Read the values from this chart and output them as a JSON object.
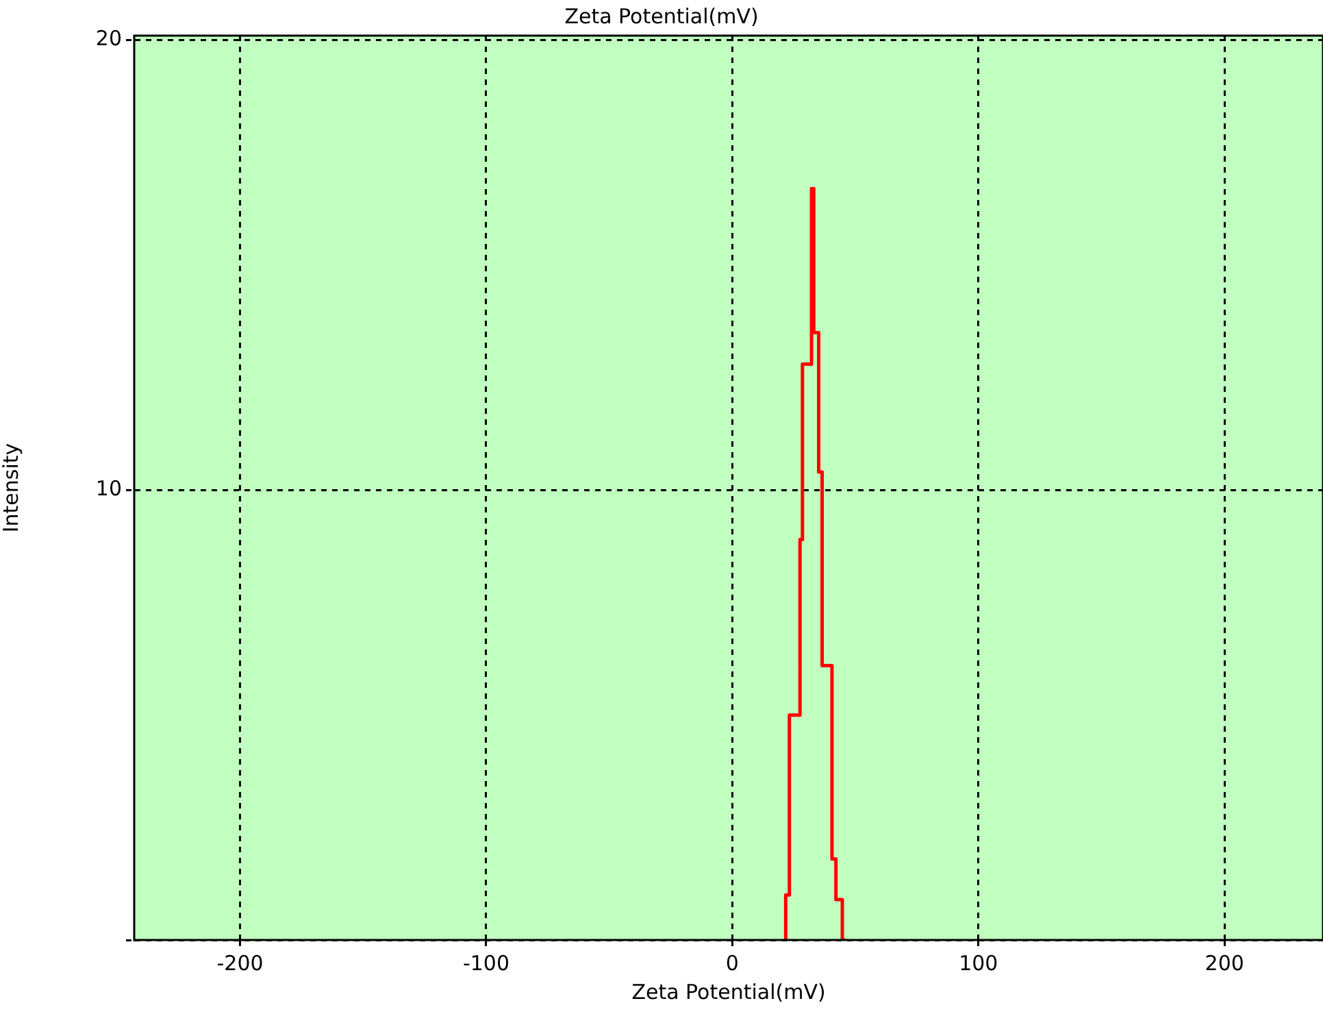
{
  "chart_data": {
    "type": "step",
    "title": "Zeta Potential(mV)",
    "xlabel": "Zeta Potential(mV)",
    "ylabel": "Intensity",
    "x": [
      21.7,
      21.7,
      23.2,
      27.5,
      28.5,
      32.2,
      33.1,
      35.1,
      36.5,
      40.5,
      42.1,
      44.7,
      46.0
    ],
    "series": [
      {
        "color": "#ff0000",
        "values": [
          0,
          0.55,
          1.0,
          5.0,
          8.9,
          12.8,
          16.7,
          13.5,
          10.4,
          6.1,
          1.8,
          0.9,
          0
        ]
      }
    ],
    "xlim": [
      -243,
      240
    ],
    "xticks": [
      -200,
      -100,
      0,
      100,
      200
    ],
    "ylim": [
      0,
      20.1
    ],
    "yticks": [
      {
        "value": 0,
        "label": null
      },
      10,
      20
    ],
    "grid": true,
    "legend": false,
    "marker": "none",
    "line_style": "solid"
  }
}
